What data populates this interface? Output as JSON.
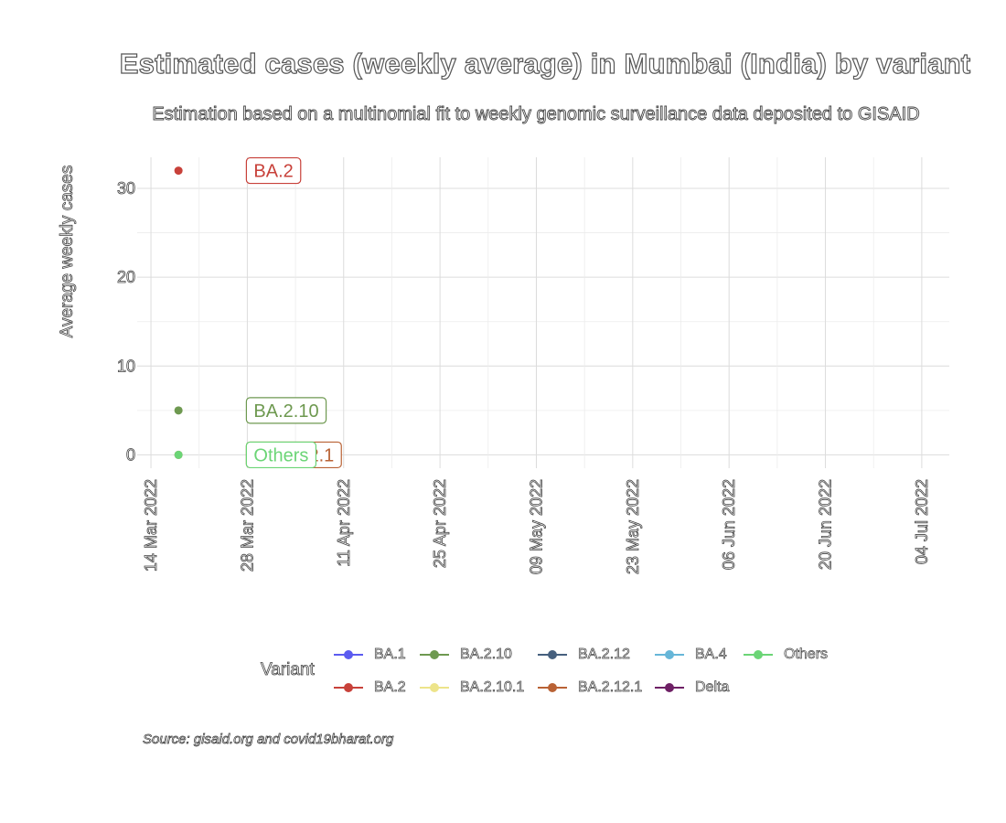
{
  "chart_data": {
    "type": "scatter",
    "title": "Estimated cases (weekly average) in Mumbai (India) by variant",
    "subtitle": "Estimation based on a multinomial fit to weekly genomic surveillance data deposited to GISAID",
    "xlabel": "",
    "ylabel": "Average weekly cases",
    "x_ticks": [
      "14 Mar 2022",
      "28 Mar 2022",
      "11 Apr 2022",
      "25 Apr 2022",
      "09 May 2022",
      "23 May 2022",
      "06 Jun 2022",
      "20 Jun 2022",
      "04 Jul 2022"
    ],
    "y_ticks": [
      0,
      10,
      20,
      30
    ],
    "xlim": [
      "2022-03-12",
      "2022-07-08"
    ],
    "ylim": [
      -1.5,
      33.5
    ],
    "grid": true,
    "legend_title": "Variant",
    "legend_position": "bottom",
    "series": [
      {
        "name": "BA.1",
        "color": "#5b5bf0"
      },
      {
        "name": "BA.2",
        "color": "#c8413a",
        "points": [
          {
            "x": "2022-03-18",
            "y": 32
          }
        ],
        "label": "BA.2"
      },
      {
        "name": "BA.2.10",
        "color": "#6e9950",
        "points": [
          {
            "x": "2022-03-18",
            "y": 5
          }
        ],
        "label": "BA.2.10"
      },
      {
        "name": "BA.2.10.1",
        "color": "#ede48a"
      },
      {
        "name": "BA.2.12",
        "color": "#46607e"
      },
      {
        "name": "BA.2.12.1",
        "color": "#b96235",
        "points": [
          {
            "x": "2022-03-18",
            "y": 0
          }
        ],
        "label": "BA.2.12.1"
      },
      {
        "name": "BA.4",
        "color": "#66b6d8"
      },
      {
        "name": "Delta",
        "color": "#6e2065"
      },
      {
        "name": "Others",
        "color": "#6bd576",
        "points": [
          {
            "x": "2022-03-18",
            "y": 0
          }
        ],
        "label": "Others"
      }
    ]
  },
  "caption": "Source: gisaid.org and covid19bharat.org",
  "legend_order": [
    "BA.1",
    "BA.2.10",
    "BA.2.12",
    "BA.4",
    "Others",
    "BA.2",
    "BA.2.10.1",
    "BA.2.12.1",
    "Delta"
  ]
}
